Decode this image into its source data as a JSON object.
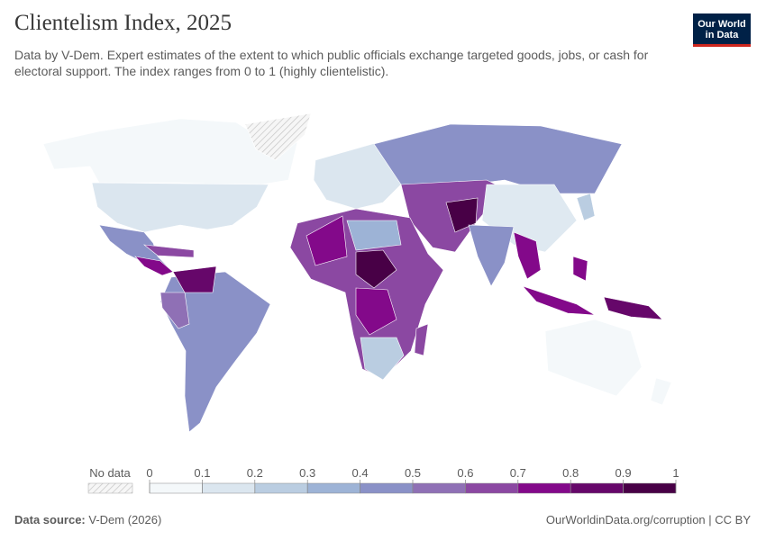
{
  "header": {
    "title": "Clientelism Index, 2025",
    "subtitle": "Data by V-Dem. Expert estimates of the extent to which public officials exchange targeted goods, jobs, or cash for electoral support. The index ranges from 0 to 1 (highly clientelistic).",
    "logo": {
      "line1": "Our World",
      "line2": "in Data"
    }
  },
  "legend": {
    "no_data": "No data",
    "ticks": [
      0,
      0.1,
      0.2,
      0.3,
      0.4,
      0.5,
      0.6,
      0.7,
      0.8,
      0.9,
      1
    ],
    "colors": [
      "#f4f8fa",
      "#dbe6ef",
      "#bacde1",
      "#9db3d6",
      "#8a91c7",
      "#8f70b5",
      "#8b48a2",
      "#83098a",
      "#66076a",
      "#480046"
    ]
  },
  "footer": {
    "source_label": "Data source:",
    "source": "V-Dem (2026)",
    "link": "OurWorldinData.org/corruption | CC BY"
  }
}
